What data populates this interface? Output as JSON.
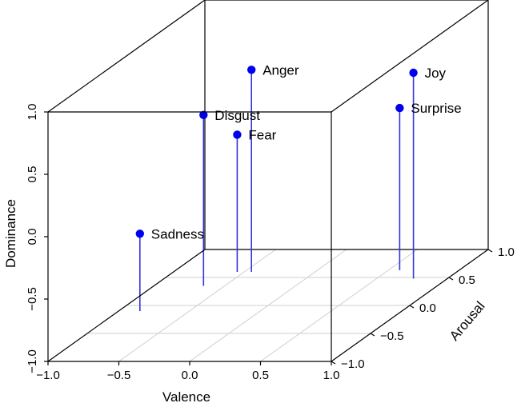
{
  "chart_data": {
    "type": "scatter",
    "variant": "3d-scatter-with-drop-lines",
    "title": "",
    "xlabel": "Valence",
    "ylabel": "Arousal",
    "zlabel": "Dominance",
    "xlim": [
      -1.0,
      1.0
    ],
    "ylim": [
      -1.0,
      1.0
    ],
    "zlim": [
      -1.0,
      1.0
    ],
    "x_ticks": [
      "−1.0",
      "−0.5",
      "0.0",
      "0.5",
      "1.0"
    ],
    "y_ticks": [
      "−1.0",
      "−0.5",
      "0.0",
      "0.5",
      "1.0"
    ],
    "z_ticks": [
      "−1.0",
      "−0.5",
      "0.0",
      "0.5",
      "1.0"
    ],
    "grid": true,
    "point_color": "#0000ee",
    "line_color": "#3333dd",
    "points": [
      {
        "label": "Anger",
        "x": -0.45,
        "y": 0.6,
        "z": 0.62
      },
      {
        "label": "Disgust",
        "x": -0.65,
        "y": 0.35,
        "z": 0.37
      },
      {
        "label": "Fear",
        "x": -0.55,
        "y": 0.6,
        "z": 0.1
      },
      {
        "label": "Sadness",
        "x": -0.85,
        "y": -0.1,
        "z": -0.38
      },
      {
        "label": "Joy",
        "x": 0.76,
        "y": 0.48,
        "z": 0.65
      },
      {
        "label": "Surprise",
        "x": 0.58,
        "y": 0.63,
        "z": 0.3
      }
    ]
  }
}
